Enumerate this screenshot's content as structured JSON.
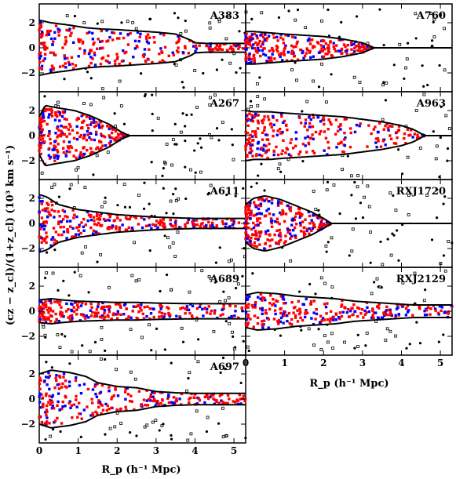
{
  "figure": {
    "ylabel": "(cz − z_cl)/(1+z_cl) (10³ km s⁻¹)",
    "xlabel": "R_p (h⁻¹ Mpc)"
  },
  "colors": {
    "member_a": "#ff0000",
    "member_b": "#0000ff",
    "other": "#000000",
    "caustic": "#000000"
  },
  "chart_data": [
    {
      "type": "scatter",
      "panel": "A383",
      "xlim": [
        0,
        5.3
      ],
      "ylim": [
        -3.5,
        3.5
      ],
      "xticks": [
        0,
        1,
        2,
        3,
        4,
        5
      ],
      "yticks": [
        -2,
        0,
        2
      ],
      "caustic": {
        "r": [
          0,
          0.3,
          0.8,
          1.2,
          1.6,
          2.0,
          2.5,
          3.0,
          3.5,
          3.9,
          4.0,
          4.3,
          5.3
        ],
        "a": [
          2.2,
          2.0,
          1.8,
          1.6,
          1.5,
          1.45,
          1.35,
          1.25,
          1.1,
          0.6,
          0.4,
          0.35,
          0.35
        ]
      },
      "x_label_shown": false
    },
    {
      "type": "scatter",
      "panel": "A760",
      "xlim": [
        0,
        5.3
      ],
      "ylim": [
        -3.5,
        3.5
      ],
      "xticks": [
        0,
        1,
        2,
        3,
        4,
        5
      ],
      "yticks": [
        -2,
        0,
        2
      ],
      "caustic": {
        "r": [
          0,
          0.2,
          0.6,
          1.0,
          1.5,
          2.0,
          2.5,
          3.0,
          3.3,
          5.3
        ],
        "a": [
          1.3,
          1.3,
          1.2,
          1.1,
          1.0,
          0.9,
          0.7,
          0.4,
          0.0,
          0.0
        ]
      },
      "x_label_shown": false
    },
    {
      "type": "scatter",
      "panel": "A267",
      "xlim": [
        0,
        5.3
      ],
      "ylim": [
        -3.5,
        3.5
      ],
      "xticks": [
        0,
        1,
        2,
        3,
        4,
        5
      ],
      "yticks": [
        -2,
        0,
        2
      ],
      "caustic": {
        "r": [
          0,
          0.15,
          0.5,
          0.9,
          1.3,
          1.8,
          2.1,
          2.3,
          5.3
        ],
        "a": [
          1.5,
          2.4,
          2.2,
          2.0,
          1.6,
          0.9,
          0.3,
          0.0,
          0.0
        ]
      },
      "x_label_shown": false
    },
    {
      "type": "scatter",
      "panel": "A963",
      "xlim": [
        0,
        5.3
      ],
      "ylim": [
        -3.5,
        3.5
      ],
      "xticks": [
        0,
        1,
        2,
        3,
        4,
        5
      ],
      "yticks": [
        -2,
        0,
        2
      ],
      "caustic": {
        "r": [
          0,
          0.2,
          0.6,
          1.0,
          1.5,
          2.0,
          2.5,
          3.0,
          3.5,
          4.0,
          4.3,
          4.6,
          5.3
        ],
        "a": [
          2.0,
          1.9,
          1.9,
          1.8,
          1.7,
          1.6,
          1.5,
          1.3,
          1.1,
          0.8,
          0.5,
          0.0,
          0.0
        ]
      },
      "x_label_shown": false
    },
    {
      "type": "scatter",
      "panel": "A611",
      "xlim": [
        0,
        5.3
      ],
      "ylim": [
        -3.5,
        3.5
      ],
      "xticks": [
        0,
        1,
        2,
        3,
        4,
        5
      ],
      "yticks": [
        -2,
        0,
        2
      ],
      "caustic": {
        "r": [
          0,
          0.2,
          0.5,
          1.0,
          1.5,
          2.0,
          2.5,
          3.0,
          3.5,
          4.0,
          4.5,
          5.3
        ],
        "a": [
          2.3,
          2.1,
          1.5,
          1.1,
          0.9,
          0.7,
          0.6,
          0.5,
          0.45,
          0.4,
          0.4,
          0.4
        ]
      },
      "x_label_shown": false
    },
    {
      "type": "scatter",
      "panel": "RXJ1720",
      "xlim": [
        0,
        5.3
      ],
      "ylim": [
        -3.5,
        3.5
      ],
      "xticks": [
        0,
        1,
        2,
        3,
        4,
        5
      ],
      "yticks": [
        -2,
        0,
        2
      ],
      "caustic": {
        "r": [
          0,
          0.2,
          0.5,
          0.9,
          1.3,
          1.7,
          2.0,
          2.2,
          5.3
        ],
        "a": [
          1.5,
          2.0,
          2.2,
          1.9,
          1.4,
          0.9,
          0.4,
          0.0,
          0.0
        ]
      },
      "x_label_shown": false
    },
    {
      "type": "scatter",
      "panel": "A689",
      "xlim": [
        0,
        5.3
      ],
      "ylim": [
        -3.5,
        3.5
      ],
      "xticks": [
        0,
        1,
        2,
        3,
        4,
        5
      ],
      "yticks": [
        -2,
        0,
        2
      ],
      "caustic": {
        "r": [
          0,
          0.3,
          0.6,
          1.0,
          1.5,
          2.0,
          2.5,
          3.0,
          4.0,
          5.3
        ],
        "a": [
          0.9,
          1.0,
          0.9,
          0.8,
          0.75,
          0.7,
          0.7,
          0.65,
          0.6,
          0.6
        ]
      },
      "x_label_shown": false
    },
    {
      "type": "scatter",
      "panel": "RXJ2129",
      "xlim": [
        0,
        5.3
      ],
      "ylim": [
        -3.5,
        3.5
      ],
      "xticks": [
        0,
        1,
        2,
        3,
        4,
        5
      ],
      "yticks": [
        -2,
        0,
        2
      ],
      "caustic": {
        "r": [
          0,
          0.3,
          0.8,
          1.3,
          1.8,
          2.3,
          2.8,
          3.3,
          3.8,
          4.3,
          5.3
        ],
        "a": [
          1.3,
          1.5,
          1.4,
          1.2,
          1.1,
          1.0,
          0.8,
          0.7,
          0.6,
          0.5,
          0.5
        ]
      },
      "x_label_shown": true
    },
    {
      "type": "scatter",
      "panel": "A697",
      "xlim": [
        0,
        5.3
      ],
      "ylim": [
        -3.5,
        3.5
      ],
      "xticks": [
        0,
        1,
        2,
        3,
        4,
        5
      ],
      "yticks": [
        -2,
        0,
        2
      ],
      "caustic": {
        "r": [
          0,
          0.3,
          0.8,
          1.2,
          1.5,
          2.0,
          2.5,
          3.0,
          3.5,
          4.0,
          5.3
        ],
        "a": [
          2.0,
          2.3,
          2.1,
          1.8,
          1.3,
          1.0,
          0.9,
          0.6,
          0.5,
          0.45,
          0.45
        ]
      },
      "x_label_shown": true
    }
  ]
}
